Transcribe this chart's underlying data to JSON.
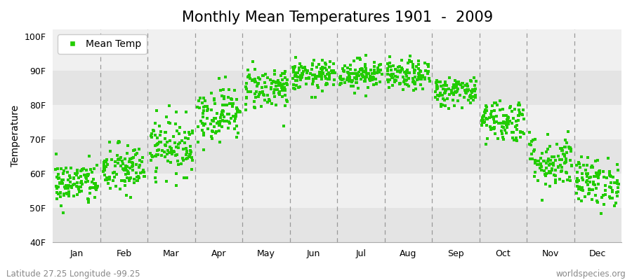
{
  "title": "Monthly Mean Temperatures 1901  -  2009",
  "ylabel": "Temperature",
  "ylim": [
    40,
    102
  ],
  "yticks": [
    40,
    50,
    60,
    70,
    80,
    90,
    100
  ],
  "ytick_labels": [
    "40F",
    "50F",
    "60F",
    "70F",
    "80F",
    "90F",
    "100F"
  ],
  "months": [
    "Jan",
    "Feb",
    "Mar",
    "Apr",
    "May",
    "Jun",
    "Jul",
    "Aug",
    "Sep",
    "Oct",
    "Nov",
    "Dec"
  ],
  "month_centers": [
    0.5,
    1.5,
    2.5,
    3.5,
    4.5,
    5.5,
    6.5,
    7.5,
    8.5,
    9.5,
    10.5,
    11.5
  ],
  "xlim": [
    0,
    12
  ],
  "dot_color": "#22CC00",
  "bg_color": "#FFFFFF",
  "plot_bg_light": "#F0F0F0",
  "plot_bg_dark": "#E4E4E4",
  "legend_label": "Mean Temp",
  "footer_left": "Latitude 27.25 Longitude -99.25",
  "footer_right": "worldspecies.org",
  "title_fontsize": 15,
  "axis_fontsize": 10,
  "tick_fontsize": 9,
  "footer_fontsize": 8.5,
  "monthly_mean_temps_F": [
    57.0,
    61.0,
    68.0,
    77.5,
    85.0,
    88.5,
    89.0,
    88.5,
    84.0,
    75.5,
    63.5,
    57.5
  ],
  "monthly_std_F": [
    3.2,
    3.8,
    4.2,
    4.0,
    3.2,
    2.2,
    2.2,
    2.2,
    2.2,
    3.2,
    4.0,
    3.5
  ],
  "n_years": 109,
  "seed": 42
}
